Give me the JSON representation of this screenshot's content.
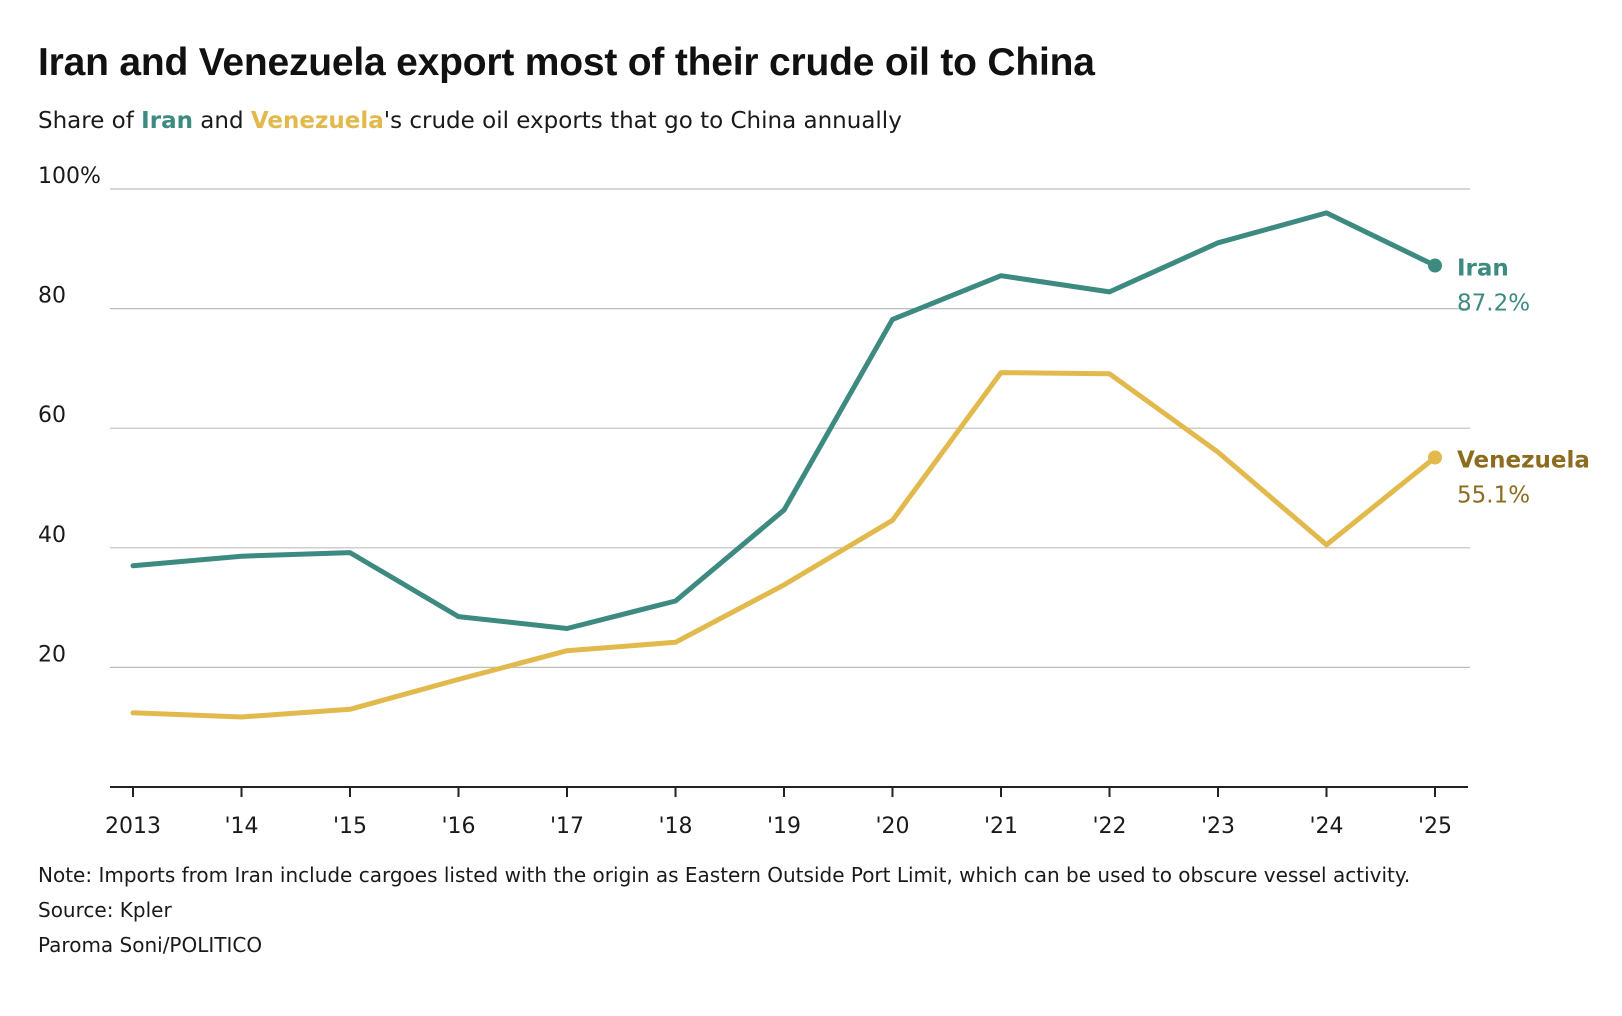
{
  "header": {
    "title": "Iran and Venezuela export most of their crude oil to China",
    "subtitle_prefix": "Share of ",
    "subtitle_iran": "Iran",
    "subtitle_and": " and ",
    "subtitle_venezuela": "Venezuela",
    "subtitle_suffix": "'s crude oil exports that go to China annually"
  },
  "colors": {
    "iran": "#3d8a80",
    "venezuela": "#e2b94d",
    "venezuela_label": "#8c6c1f",
    "grid": "#bdbdbd",
    "axis": "#222222"
  },
  "chart_data": {
    "type": "line",
    "x": [
      "2013",
      "'14",
      "'15",
      "'16",
      "'17",
      "'18",
      "'19",
      "'20",
      "'21",
      "'22",
      "'23",
      "'24",
      "'25"
    ],
    "ylim": [
      0,
      100
    ],
    "yticks": [
      20,
      40,
      60,
      80,
      100
    ],
    "ytick_labels": [
      "20",
      "40",
      "60",
      "80",
      "100%"
    ],
    "grid": true,
    "series": [
      {
        "name": "Iran",
        "end_label": "87.2%",
        "values": [
          37,
          38.6,
          39.2,
          28.5,
          26.5,
          31.1,
          46.3,
          78.2,
          85.5,
          82.8,
          91,
          96,
          87.2
        ]
      },
      {
        "name": "Venezuela",
        "end_label": "55.1%",
        "values": [
          12.4,
          11.7,
          13,
          18,
          22.8,
          24.2,
          33.8,
          44.6,
          69.3,
          69.1,
          56,
          40.5,
          55.1
        ]
      }
    ]
  },
  "footer": {
    "note": "Note: Imports from Iran include cargoes listed with the origin as Eastern Outside Port Limit, which can be used to obscure vessel activity.",
    "source": "Source: Kpler",
    "credit": "Paroma Soni/POLITICO"
  }
}
